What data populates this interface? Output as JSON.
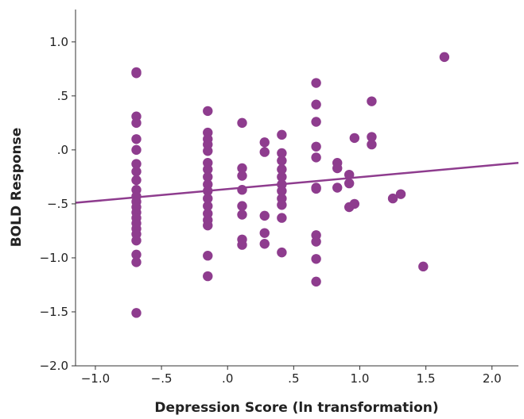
{
  "chart_data": {
    "type": "scatter",
    "title": "",
    "xlabel": "Depression Score (ln transformation)",
    "ylabel": "BOLD Response",
    "xlim": [
      -1.15,
      2.2
    ],
    "ylim": [
      -2.0,
      1.3
    ],
    "x_ticks": [
      {
        "value": -1.0,
        "label": "−1.0"
      },
      {
        "value": -0.5,
        "label": "−.5"
      },
      {
        "value": 0.0,
        "label": ".0"
      },
      {
        "value": 0.5,
        "label": ".5"
      },
      {
        "value": 1.0,
        "label": "1.0"
      },
      {
        "value": 1.5,
        "label": "1.5"
      },
      {
        "value": 2.0,
        "label": "2.0"
      }
    ],
    "y_ticks": [
      {
        "value": 1.0,
        "label": "1.0"
      },
      {
        "value": 0.5,
        "label": ".5"
      },
      {
        "value": 0.0,
        "label": ".0"
      },
      {
        "value": -0.5,
        "label": "−.5"
      },
      {
        "value": -1.0,
        "label": "−1.0"
      },
      {
        "value": -1.5,
        "label": "−1.5"
      },
      {
        "value": -2.0,
        "label": "−2.0"
      }
    ],
    "grid": false,
    "marker_color": "#8e3c8e",
    "line_color": "#8e3c8e",
    "fit_line": {
      "x": [
        -1.15,
        2.2
      ],
      "y": [
        -0.49,
        -0.12
      ]
    },
    "points": [
      {
        "x": -0.69,
        "y": 0.72
      },
      {
        "x": -0.69,
        "y": 0.71
      },
      {
        "x": -0.69,
        "y": 0.31
      },
      {
        "x": -0.69,
        "y": 0.25
      },
      {
        "x": -0.69,
        "y": 0.1
      },
      {
        "x": -0.69,
        "y": 0.0
      },
      {
        "x": -0.69,
        "y": -0.13
      },
      {
        "x": -0.69,
        "y": -0.2
      },
      {
        "x": -0.69,
        "y": -0.28
      },
      {
        "x": -0.69,
        "y": -0.37
      },
      {
        "x": -0.69,
        "y": -0.43
      },
      {
        "x": -0.69,
        "y": -0.48
      },
      {
        "x": -0.69,
        "y": -0.53
      },
      {
        "x": -0.69,
        "y": -0.58
      },
      {
        "x": -0.69,
        "y": -0.63
      },
      {
        "x": -0.69,
        "y": -0.68
      },
      {
        "x": -0.69,
        "y": -0.73
      },
      {
        "x": -0.69,
        "y": -0.78
      },
      {
        "x": -0.69,
        "y": -0.84
      },
      {
        "x": -0.69,
        "y": -0.97
      },
      {
        "x": -0.69,
        "y": -1.04
      },
      {
        "x": -0.69,
        "y": -1.51
      },
      {
        "x": -0.15,
        "y": 0.36
      },
      {
        "x": -0.15,
        "y": 0.16
      },
      {
        "x": -0.15,
        "y": 0.1
      },
      {
        "x": -0.15,
        "y": 0.05
      },
      {
        "x": -0.15,
        "y": -0.01
      },
      {
        "x": -0.15,
        "y": -0.12
      },
      {
        "x": -0.15,
        "y": -0.18
      },
      {
        "x": -0.15,
        "y": -0.25
      },
      {
        "x": -0.15,
        "y": -0.32
      },
      {
        "x": -0.15,
        "y": -0.38
      },
      {
        "x": -0.15,
        "y": -0.45
      },
      {
        "x": -0.15,
        "y": -0.52
      },
      {
        "x": -0.15,
        "y": -0.59
      },
      {
        "x": -0.15,
        "y": -0.65
      },
      {
        "x": -0.15,
        "y": -0.7
      },
      {
        "x": -0.15,
        "y": -0.98
      },
      {
        "x": -0.15,
        "y": -1.17
      },
      {
        "x": 0.11,
        "y": 0.25
      },
      {
        "x": 0.11,
        "y": -0.17
      },
      {
        "x": 0.11,
        "y": -0.24
      },
      {
        "x": 0.11,
        "y": -0.37
      },
      {
        "x": 0.11,
        "y": -0.52
      },
      {
        "x": 0.11,
        "y": -0.6
      },
      {
        "x": 0.11,
        "y": -0.83
      },
      {
        "x": 0.11,
        "y": -0.88
      },
      {
        "x": 0.28,
        "y": 0.07
      },
      {
        "x": 0.28,
        "y": -0.02
      },
      {
        "x": 0.28,
        "y": -0.61
      },
      {
        "x": 0.28,
        "y": -0.77
      },
      {
        "x": 0.28,
        "y": -0.87
      },
      {
        "x": 0.41,
        "y": 0.14
      },
      {
        "x": 0.41,
        "y": -0.03
      },
      {
        "x": 0.41,
        "y": -0.1
      },
      {
        "x": 0.41,
        "y": -0.18
      },
      {
        "x": 0.41,
        "y": -0.25
      },
      {
        "x": 0.41,
        "y": -0.32
      },
      {
        "x": 0.41,
        "y": -0.38
      },
      {
        "x": 0.41,
        "y": -0.45
      },
      {
        "x": 0.41,
        "y": -0.51
      },
      {
        "x": 0.41,
        "y": -0.63
      },
      {
        "x": 0.41,
        "y": -0.95
      },
      {
        "x": 0.67,
        "y": 0.62
      },
      {
        "x": 0.67,
        "y": 0.42
      },
      {
        "x": 0.67,
        "y": 0.26
      },
      {
        "x": 0.67,
        "y": 0.03
      },
      {
        "x": 0.67,
        "y": -0.07
      },
      {
        "x": 0.67,
        "y": -0.35
      },
      {
        "x": 0.67,
        "y": -0.36
      },
      {
        "x": 0.67,
        "y": -0.79
      },
      {
        "x": 0.67,
        "y": -0.85
      },
      {
        "x": 0.67,
        "y": -1.01
      },
      {
        "x": 0.67,
        "y": -1.22
      },
      {
        "x": 0.83,
        "y": -0.12
      },
      {
        "x": 0.83,
        "y": -0.17
      },
      {
        "x": 0.83,
        "y": -0.35
      },
      {
        "x": 0.92,
        "y": -0.23
      },
      {
        "x": 0.92,
        "y": -0.31
      },
      {
        "x": 0.92,
        "y": -0.53
      },
      {
        "x": 0.96,
        "y": 0.11
      },
      {
        "x": 0.96,
        "y": -0.5
      },
      {
        "x": 1.09,
        "y": 0.45
      },
      {
        "x": 1.09,
        "y": 0.12
      },
      {
        "x": 1.09,
        "y": 0.05
      },
      {
        "x": 1.25,
        "y": -0.45
      },
      {
        "x": 1.31,
        "y": -0.41
      },
      {
        "x": 1.48,
        "y": -1.08
      },
      {
        "x": 1.64,
        "y": 0.86
      }
    ]
  }
}
